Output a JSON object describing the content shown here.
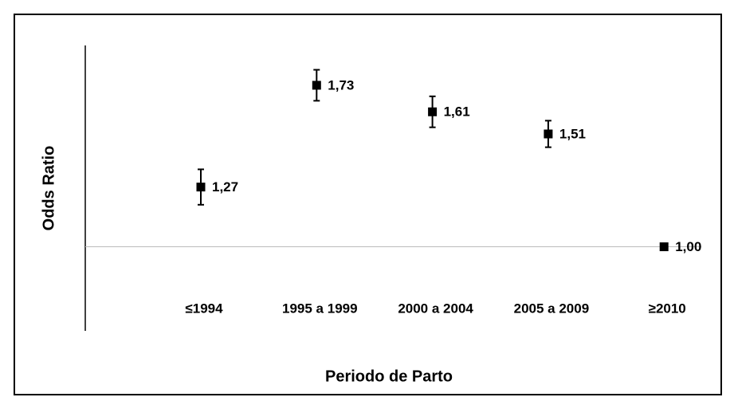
{
  "chart_data": {
    "type": "errorbar",
    "xlabel": "Periodo de Parto",
    "ylabel": "Odds Ratio",
    "categories": [
      "≤1994",
      "1995 a 1999",
      "2000 a 2004",
      "2005 a 2009",
      "≥2010"
    ],
    "values": [
      1.27,
      1.73,
      1.61,
      1.51,
      1.0
    ],
    "value_labels": [
      "1,27",
      "1,73",
      "1,61",
      "1,51",
      "1,00"
    ],
    "lower": [
      1.19,
      1.66,
      1.54,
      1.45,
      null
    ],
    "upper": [
      1.35,
      1.8,
      1.68,
      1.57,
      null
    ],
    "color": "#000000",
    "ylim": [
      0.62,
      1.91
    ],
    "reference_line": 1.0
  }
}
